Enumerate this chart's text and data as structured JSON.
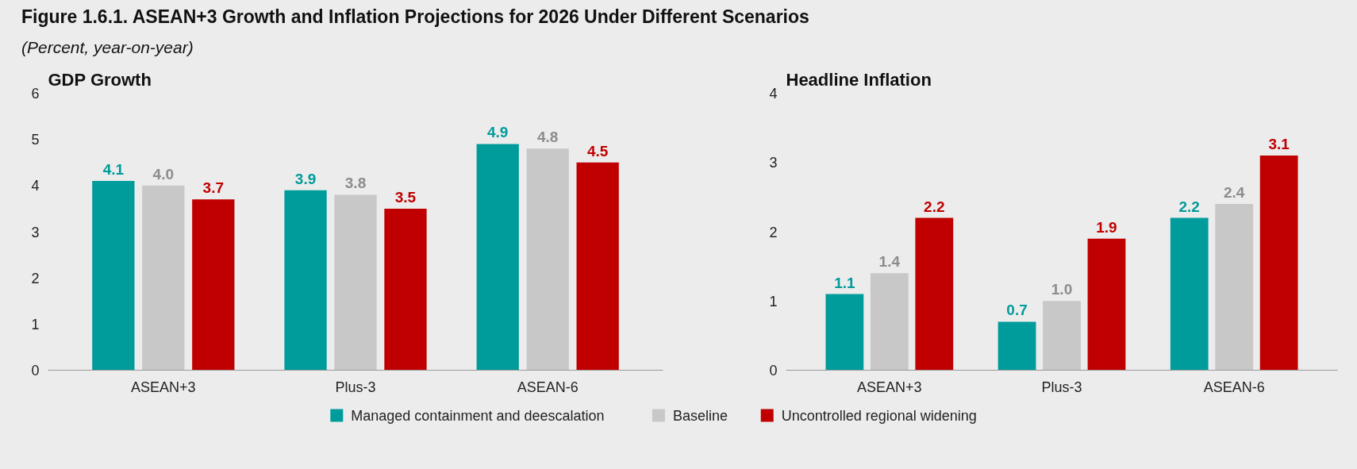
{
  "chart_data": [
    {
      "type": "other",
      "title": "Figure 1.6.1. ASEAN+3 Growth and Inflation Projections for 2026 Under Different Scenarios",
      "subtitle": "(Percent, year-on-year)"
    },
    {
      "type": "bar",
      "title": "GDP Growth",
      "categories": [
        "ASEAN+3",
        "Plus-3",
        "ASEAN-6"
      ],
      "ylim": [
        0,
        6
      ],
      "yticks": [
        0,
        1,
        2,
        3,
        4,
        5,
        6
      ],
      "grid": false,
      "legend": "bottom",
      "series": [
        {
          "name": "Managed containment and deescalation",
          "color": "#009b9b",
          "values": [
            4.1,
            3.9,
            4.9
          ],
          "value_labels": [
            "4.1",
            "3.9",
            "4.9"
          ]
        },
        {
          "name": "Baseline",
          "color": "#c8c8c8",
          "values": [
            4.0,
            3.8,
            4.8
          ],
          "value_labels": [
            "4.0",
            "3.8",
            "4.8"
          ]
        },
        {
          "name": "Uncontrolled regional widening",
          "color": "#c00000",
          "values": [
            3.7,
            3.5,
            4.5
          ],
          "value_labels": [
            "3.7",
            "3.5",
            "4.5"
          ]
        }
      ]
    },
    {
      "type": "bar",
      "title": "Headline Inflation",
      "categories": [
        "ASEAN+3",
        "Plus-3",
        "ASEAN-6"
      ],
      "ylim": [
        0,
        4
      ],
      "yticks": [
        0,
        1,
        2,
        3,
        4
      ],
      "grid": false,
      "series": [
        {
          "color": "#009b9b",
          "values": [
            1.1,
            0.7,
            2.2
          ],
          "value_labels": [
            "1.1",
            "0.7",
            "2.2"
          ]
        },
        {
          "color": "#c8c8c8",
          "values": [
            1.4,
            1.0,
            2.4
          ],
          "value_labels": [
            "1.4",
            "1.0",
            "2.4"
          ]
        },
        {
          "color": "#c00000",
          "values": [
            2.2,
            1.9,
            3.1
          ],
          "value_labels": [
            "2.2",
            "1.9",
            "3.1"
          ]
        }
      ]
    }
  ]
}
